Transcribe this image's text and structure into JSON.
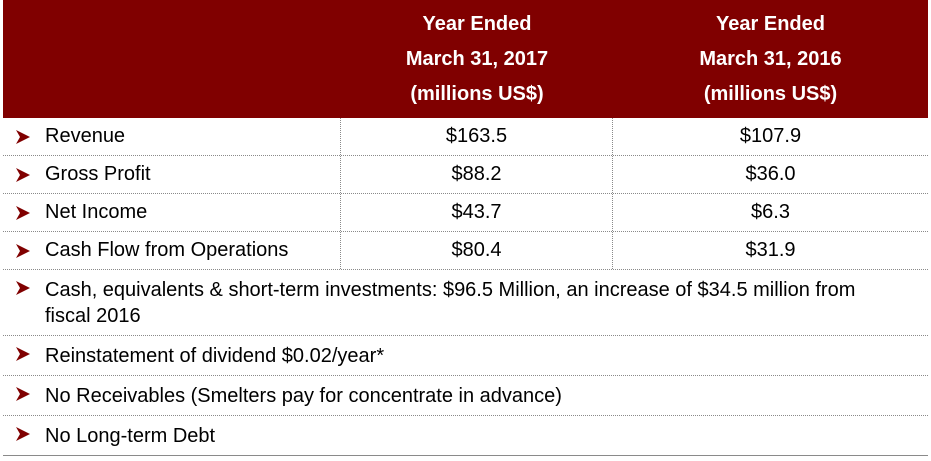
{
  "header": {
    "col1": [
      "Year Ended",
      "March 31, 2017",
      "(millions US$)"
    ],
    "col2": [
      "Year Ended",
      "March 31, 2016",
      "(millions US$)"
    ]
  },
  "metrics": [
    {
      "label": "Revenue",
      "v2017": "$163.5",
      "v2016": "$107.9"
    },
    {
      "label": "Gross Profit",
      "v2017": "$88.2",
      "v2016": "$36.0"
    },
    {
      "label": "Net Income",
      "v2017": "$43.7",
      "v2016": "$6.3"
    },
    {
      "label": "Cash Flow from Operations",
      "v2017": "$80.4",
      "v2016": "$31.9"
    }
  ],
  "notes": [
    "Cash, equivalents & short-term investments: $96.5 Million, an increase of $34.5 million from fiscal 2016",
    "Reinstatement of dividend $0.02/year*",
    "No Receivables (Smelters pay for concentrate in advance)",
    "No Long-term Debt"
  ],
  "colors": {
    "header_bg": "#800000",
    "bullet": "#800000"
  },
  "icons": {
    "bullet": "arrowhead-bullet-icon"
  }
}
